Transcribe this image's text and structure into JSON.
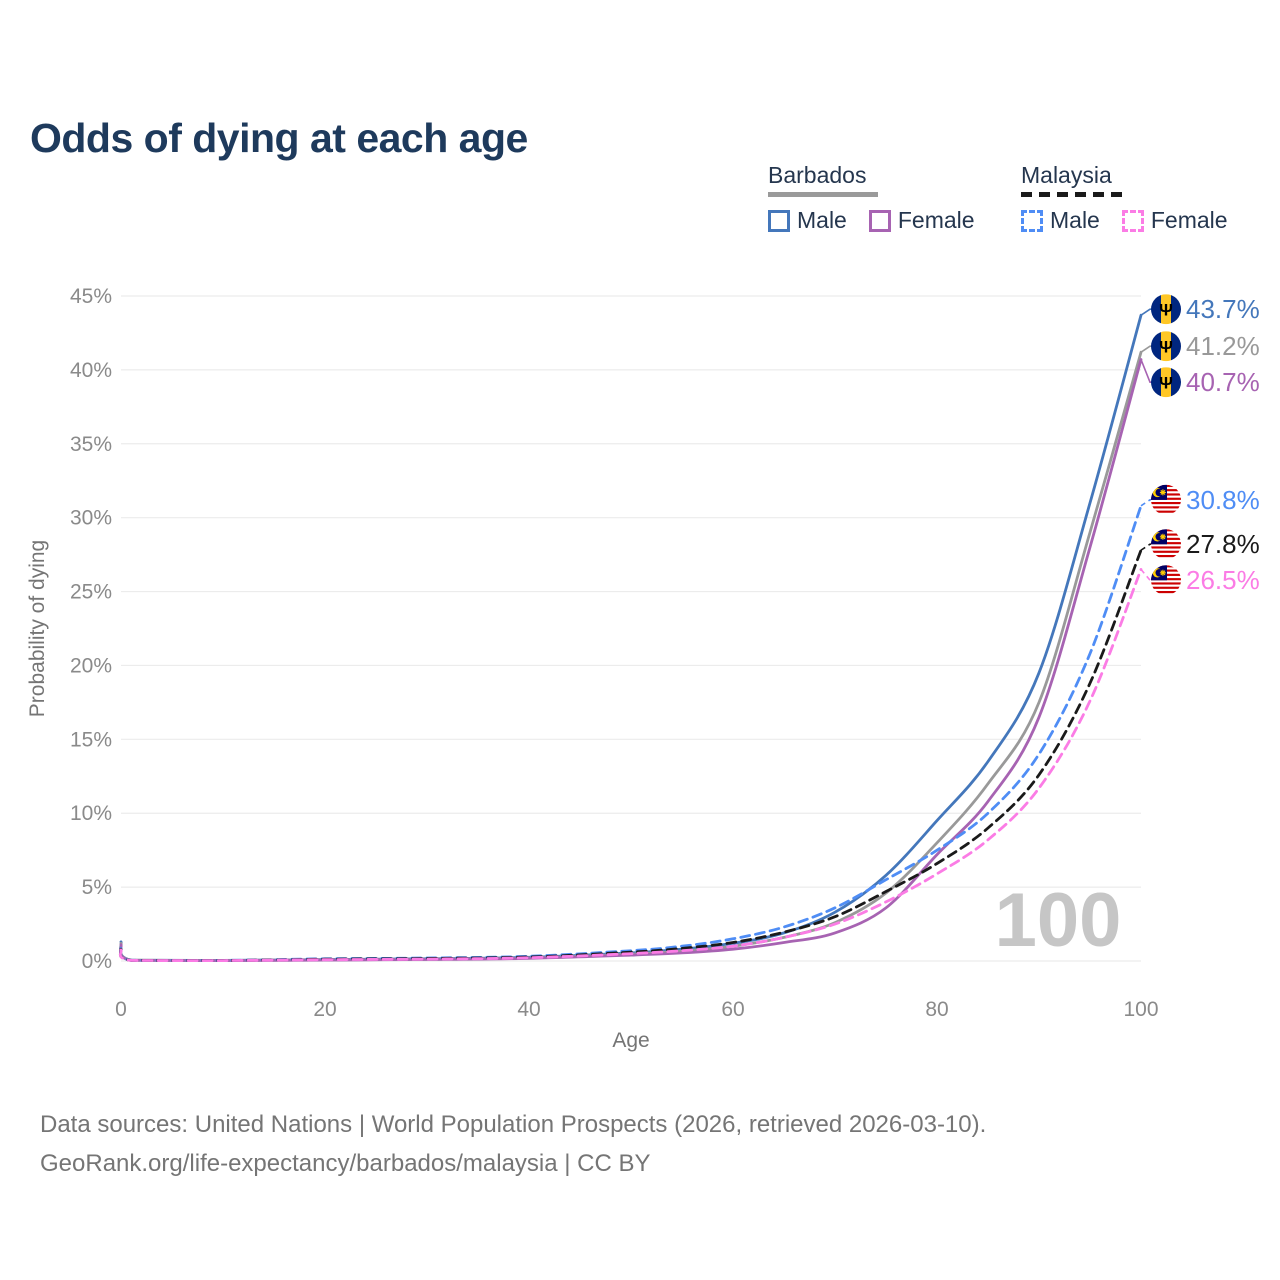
{
  "title": "Odds of dying at each age",
  "watermark": "100",
  "legend": {
    "groups": [
      {
        "label": "Barbados",
        "line_style": "solid",
        "line_color": "#9a9a9a",
        "items": [
          {
            "label": "Male",
            "color": "#4477bb",
            "style": "solid"
          },
          {
            "label": "Female",
            "color": "#a763b2",
            "style": "solid"
          }
        ]
      },
      {
        "label": "Malaysia",
        "line_style": "dashed",
        "line_color": "#1a1a1a",
        "items": [
          {
            "label": "Male",
            "color": "#4f8df5",
            "style": "dashed"
          },
          {
            "label": "Female",
            "color": "#fb7ce5",
            "style": "dashed"
          }
        ]
      }
    ]
  },
  "footer": {
    "line1": "Data sources: United Nations | World Population Prospects (2026, retrieved 2026-03-10).",
    "line2": "GeoRank.org/life-expectancy/barbados/malaysia | CC BY"
  },
  "colors": {
    "title_text": "#1e3a5c",
    "axis_text": "#8a8a8a",
    "axis_title_text": "#757575",
    "gridline": "#ececec",
    "watermark": "#c6c6c6",
    "barbados_male": "#4477bb",
    "barbados_both": "#999999",
    "barbados_female": "#a763b2",
    "malaysia_male": "#4f8df5",
    "malaysia_both": "#1a1a1a",
    "malaysia_female": "#fb7ce5"
  },
  "chart_data": {
    "type": "line",
    "title": "Odds of dying at each age",
    "xlabel": "Age",
    "ylabel": "Probability of dying",
    "xlim": [
      0,
      100
    ],
    "ylim": [
      0,
      45
    ],
    "y_tick_step": 5,
    "y_tick_suffix": "%",
    "x_ticks": [
      0,
      20,
      40,
      60,
      80,
      100
    ],
    "grid": "horizontal",
    "legend_position": "top-right",
    "hover_age_indicator": "100",
    "ages": [
      0,
      1,
      10,
      20,
      30,
      40,
      50,
      55,
      60,
      65,
      70,
      75,
      80,
      85,
      90,
      95,
      100
    ],
    "series": [
      {
        "id": "barbados-male",
        "name": "Barbados Male",
        "country": "Barbados",
        "sex": "Male",
        "color": "#4477bb",
        "dash": "solid",
        "flag": "barbados",
        "end_value": 43.7,
        "end_label": "43.7%",
        "values": [
          1.3,
          0.06,
          0.04,
          0.1,
          0.15,
          0.25,
          0.55,
          0.8,
          1.2,
          1.9,
          3.3,
          5.8,
          9.5,
          13.5,
          19.5,
          31.0,
          43.7
        ]
      },
      {
        "id": "barbados-both",
        "name": "Barbados Both sexes",
        "country": "Barbados",
        "sex": "Both",
        "color": "#999999",
        "dash": "solid",
        "flag": "barbados",
        "end_value": 41.2,
        "end_label": "41.2%",
        "values": [
          1.2,
          0.055,
          0.035,
          0.08,
          0.12,
          0.21,
          0.47,
          0.67,
          1.0,
          1.6,
          2.6,
          4.6,
          8.0,
          12.0,
          17.5,
          29.0,
          41.2
        ]
      },
      {
        "id": "barbados-female",
        "name": "Barbados Female",
        "country": "Barbados",
        "sex": "Female",
        "color": "#a763b2",
        "dash": "solid",
        "flag": "barbados",
        "end_value": 40.7,
        "end_label": "40.7%",
        "values": [
          1.1,
          0.05,
          0.03,
          0.06,
          0.1,
          0.18,
          0.4,
          0.55,
          0.8,
          1.25,
          1.9,
          3.6,
          7.2,
          10.8,
          16.5,
          28.0,
          40.7
        ]
      },
      {
        "id": "malaysia-male",
        "name": "Malaysia Male",
        "country": "Malaysia",
        "sex": "Male",
        "color": "#4f8df5",
        "dash": "dashed",
        "flag": "malaysia",
        "end_value": 30.8,
        "end_label": "30.8%",
        "values": [
          0.85,
          0.05,
          0.04,
          0.15,
          0.2,
          0.32,
          0.7,
          1.0,
          1.5,
          2.3,
          3.6,
          5.5,
          7.5,
          10.0,
          14.0,
          20.8,
          30.8
        ]
      },
      {
        "id": "malaysia-both",
        "name": "Malaysia Both sexes",
        "country": "Malaysia",
        "sex": "Both",
        "color": "#1a1a1a",
        "dash": "dashed",
        "flag": "malaysia",
        "end_value": 27.8,
        "end_label": "27.8%",
        "values": [
          0.8,
          0.045,
          0.035,
          0.12,
          0.17,
          0.27,
          0.6,
          0.85,
          1.25,
          1.95,
          3.0,
          4.7,
          6.6,
          9.0,
          12.6,
          18.8,
          27.8
        ]
      },
      {
        "id": "malaysia-female",
        "name": "Malaysia Female",
        "country": "Malaysia",
        "sex": "Female",
        "color": "#fb7ce5",
        "dash": "dashed",
        "flag": "malaysia",
        "end_value": 26.5,
        "end_label": "26.5%",
        "values": [
          0.75,
          0.04,
          0.03,
          0.09,
          0.13,
          0.22,
          0.5,
          0.7,
          1.0,
          1.6,
          2.5,
          4.0,
          5.9,
          8.2,
          11.7,
          17.6,
          26.5
        ]
      }
    ]
  }
}
